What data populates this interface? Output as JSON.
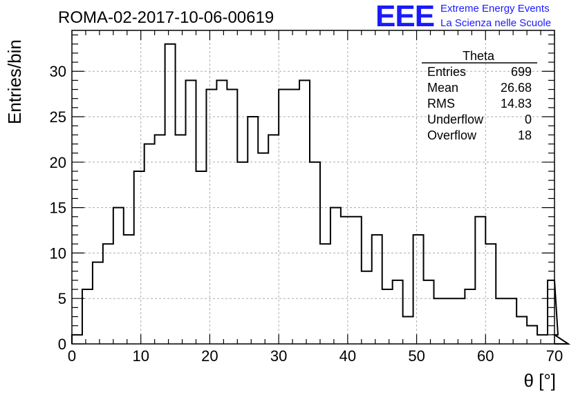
{
  "title": "ROMA-02-2017-10-06-00619",
  "logo": {
    "text": "EEE",
    "line1": "Extreme Energy Events",
    "line2": "La Scienza nelle Scuole",
    "color": "#1a1aff"
  },
  "stats": {
    "title": "Theta",
    "rows": [
      {
        "label": "Entries",
        "value": "699"
      },
      {
        "label": "Mean",
        "value": "26.68"
      },
      {
        "label": "RMS",
        "value": "14.83"
      },
      {
        "label": "Underflow",
        "value": "0"
      },
      {
        "label": "Overflow",
        "value": "18"
      }
    ]
  },
  "chart_data": {
    "type": "bar",
    "histogram": true,
    "xlabel": "θ [°]",
    "ylabel": "Entries/bin",
    "xlim": [
      0,
      70
    ],
    "ylim": [
      0,
      34.5
    ],
    "bin_width": 1.5,
    "grid": true,
    "x_ticks": [
      "0",
      "10",
      "20",
      "30",
      "40",
      "50",
      "60",
      "70"
    ],
    "y_ticks": [
      "0",
      "5",
      "10",
      "15",
      "20",
      "25",
      "30"
    ],
    "values": [
      1,
      6,
      9,
      11,
      15,
      12,
      19,
      22,
      23,
      33,
      23,
      29,
      19,
      28,
      29,
      28,
      20,
      25,
      21,
      23,
      28,
      28,
      29,
      20,
      11,
      15,
      14,
      14,
      8,
      12,
      6,
      7,
      3,
      12,
      7,
      5,
      5,
      5,
      6,
      14,
      11,
      5,
      5,
      3,
      2,
      1,
      7,
      1,
      0
    ]
  }
}
